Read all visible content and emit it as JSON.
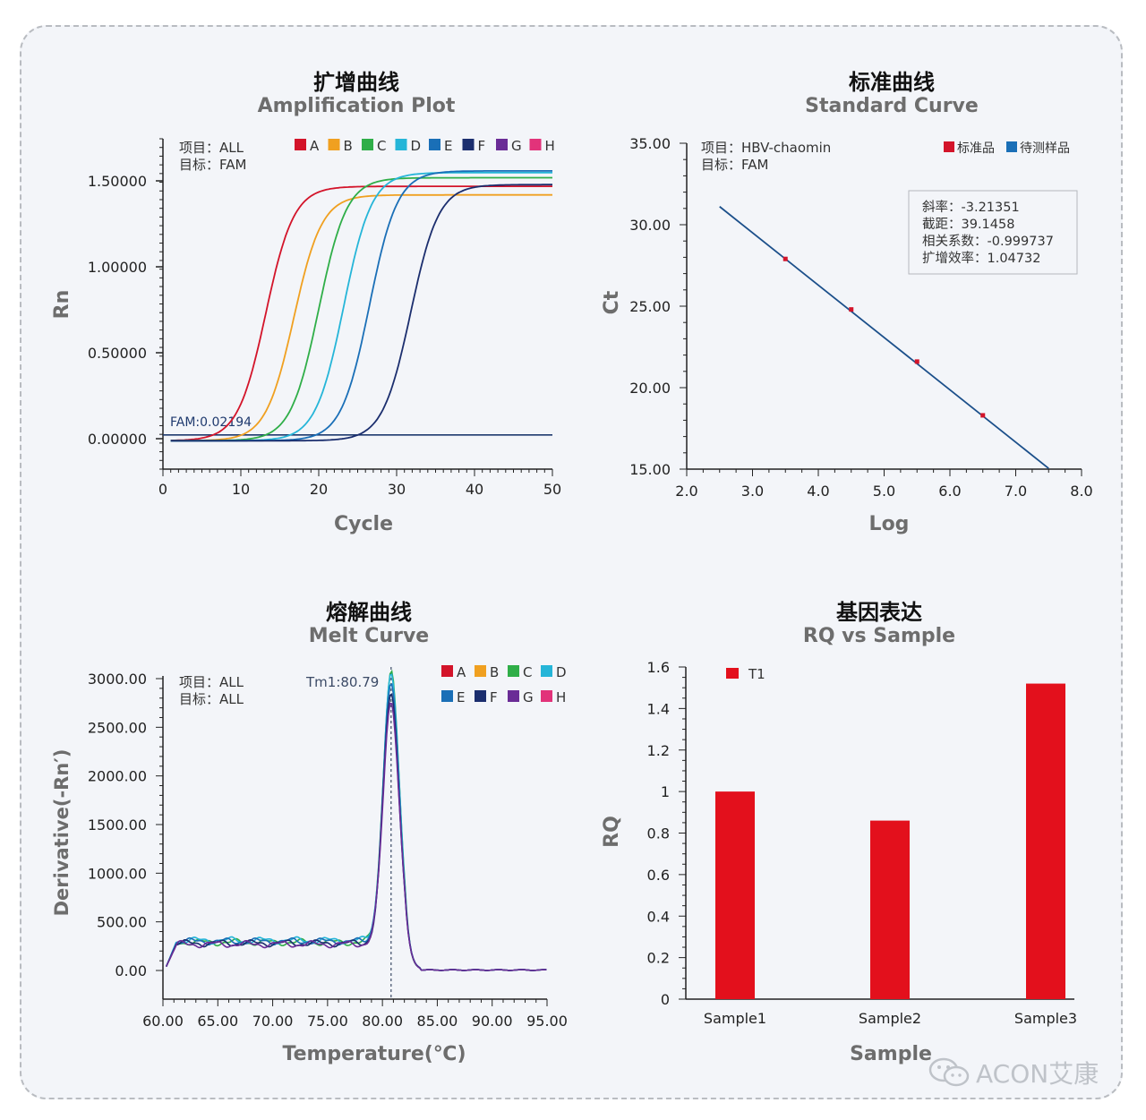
{
  "watermark": {
    "text": "ACON艾康",
    "icon": "wechat-icon"
  },
  "chart_data": [
    {
      "type": "line",
      "title": "扩增曲线",
      "subtitle": "Amplification Plot",
      "xlabel": "Cycle",
      "ylabel": "Rn",
      "xlim": [
        0,
        50
      ],
      "ylim": [
        -0.02,
        1.75
      ],
      "xticks": [
        "0",
        "10",
        "20",
        "30",
        "40",
        "50"
      ],
      "yticks": [
        "0.00000",
        "0.50000",
        "1.00000",
        "1.50000"
      ],
      "info": [
        "项目：ALL",
        "目标：FAM"
      ],
      "threshold": {
        "value": 0.02194,
        "label": "FAM:0.02194",
        "color": "#1f3a6e"
      },
      "legend": [
        "A",
        "B",
        "C",
        "D",
        "E",
        "F",
        "G",
        "H"
      ],
      "series": [
        {
          "name": "A",
          "color": "#d3142a",
          "ct": 13.2,
          "plateau": 1.48,
          "rise": 1.8
        },
        {
          "name": "B",
          "color": "#f0a020",
          "ct": 16.8,
          "plateau": 1.43,
          "rise": 1.8
        },
        {
          "name": "C",
          "color": "#2fae48",
          "ct": 20.0,
          "plateau": 1.53,
          "rise": 1.8
        },
        {
          "name": "D",
          "color": "#25b5d8",
          "ct": 23.2,
          "plateau": 1.56,
          "rise": 1.8
        },
        {
          "name": "E",
          "color": "#1a6fb7",
          "ct": 26.5,
          "plateau": 1.57,
          "rise": 1.8
        },
        {
          "name": "F",
          "color": "#1b2e6e",
          "ct": 31.8,
          "plateau": 1.49,
          "rise": 1.8
        }
      ],
      "legend_colors": [
        "#d3142a",
        "#f0a020",
        "#2fae48",
        "#25b5d8",
        "#1a6fb7",
        "#1b2e6e",
        "#6a2c96",
        "#e2337a"
      ]
    },
    {
      "type": "scatter",
      "title": "标准曲线",
      "subtitle": "Standard Curve",
      "xlabel": "Log",
      "ylabel": "Ct",
      "xlim": [
        2.0,
        8.0
      ],
      "ylim": [
        15.0,
        35.0
      ],
      "xticks": [
        "2.0",
        "3.0",
        "4.0",
        "5.0",
        "6.0",
        "7.0",
        "8.0"
      ],
      "yticks": [
        "15.00",
        "20.00",
        "25.00",
        "30.00",
        "35.00"
      ],
      "info": [
        "项目：HBV-chaomin",
        "目标：FAM"
      ],
      "legend": [
        {
          "name": "标准品",
          "color": "#d3142a"
        },
        {
          "name": "待测样品",
          "color": "#1a6fb7"
        }
      ],
      "stats": [
        "斜率：-3.21351",
        "截距：39.1458",
        "相关系数：-0.999737",
        "扩增效率：1.04732"
      ],
      "fit": {
        "slope": -3.21351,
        "intercept": 39.1458,
        "x_range": [
          2.5,
          7.5
        ],
        "color": "#1b4f8a"
      },
      "points": [
        {
          "x": 3.5,
          "y": 27.9
        },
        {
          "x": 4.5,
          "y": 24.8
        },
        {
          "x": 5.5,
          "y": 21.6
        },
        {
          "x": 6.5,
          "y": 18.3
        }
      ]
    },
    {
      "type": "line",
      "title": "熔解曲线",
      "subtitle": "Melt Curve",
      "xlabel": "Temperature(℃)",
      "ylabel": "Derivative(-Rn′)",
      "xlim": [
        60.0,
        95.0
      ],
      "ylim": [
        -150,
        3000
      ],
      "xticks": [
        "60.00",
        "65.00",
        "70.00",
        "75.00",
        "80.00",
        "85.00",
        "90.00",
        "95.00"
      ],
      "yticks": [
        "0.00",
        "500.00",
        "1000.00",
        "1500.00",
        "2000.00",
        "2500.00",
        "3000.00"
      ],
      "info": [
        "项目：ALL",
        "目标：ALL"
      ],
      "tm": {
        "value": 80.79,
        "label": "Tm1:80.79"
      },
      "legend": [
        "A",
        "B",
        "C",
        "D",
        "E",
        "F",
        "G",
        "H"
      ],
      "legend_colors": [
        "#d3142a",
        "#f0a020",
        "#2fae48",
        "#25b5d8",
        "#1a6fb7",
        "#1b2e6e",
        "#6a2c96",
        "#e2337a"
      ],
      "series": [
        {
          "name": "C",
          "color": "#2fae48",
          "peak": 2780,
          "base": 290
        },
        {
          "name": "D",
          "color": "#25b5d8",
          "peak": 2720,
          "base": 310
        },
        {
          "name": "E",
          "color": "#1a6fb7",
          "peak": 2640,
          "base": 300
        },
        {
          "name": "F",
          "color": "#1b2e6e",
          "peak": 2560,
          "base": 280
        },
        {
          "name": "G",
          "color": "#6a2c96",
          "peak": 2500,
          "base": 270
        }
      ]
    },
    {
      "type": "bar",
      "title": "基因表达",
      "subtitle": "RQ vs Sample",
      "xlabel": "Sample",
      "ylabel": "RQ",
      "ylim": [
        0,
        1.6
      ],
      "yticks": [
        "0",
        "0.2",
        "0.4",
        "0.6",
        "0.8",
        "1",
        "1.2",
        "1.4",
        "1.6"
      ],
      "categories": [
        "Sample1",
        "Sample2",
        "Sample3"
      ],
      "series": [
        {
          "name": "T1",
          "color": "#e3101c",
          "values": [
            1.0,
            0.86,
            1.52
          ]
        }
      ]
    }
  ]
}
